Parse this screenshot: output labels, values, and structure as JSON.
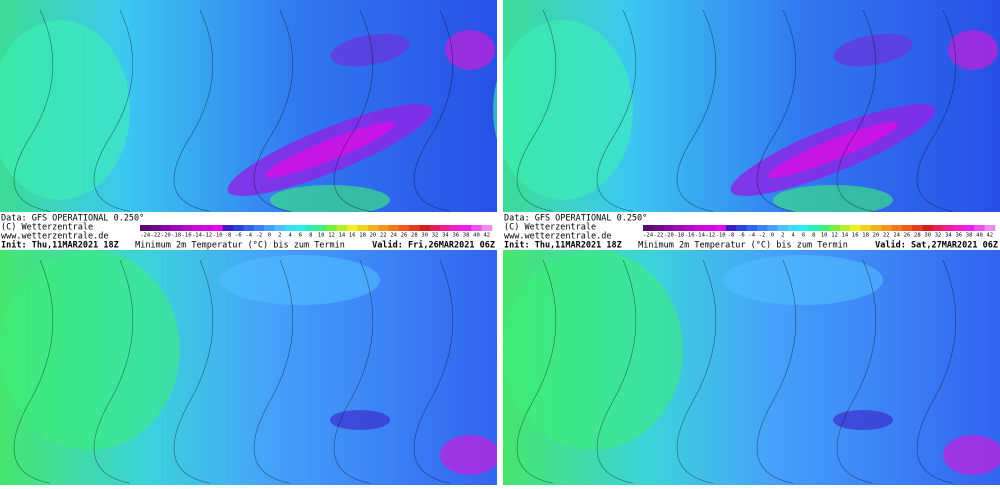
{
  "panels": [
    {
      "source": "Data: GFS OPERATIONAL 0.250°",
      "copyright": "(C) Wetterzentrale",
      "url": "www.wetterzentrale.de",
      "init": "Init: Thu,11MAR2021 18Z",
      "title": "Minimum 2m Temperatur (°C) bis zum Termin",
      "valid": "Valid: Fri,26MAR2021 06Z"
    },
    {
      "source": "Data: GFS OPERATIONAL 0.250°",
      "copyright": "(C) Wetterzentrale",
      "url": "www.wetterzentrale.de",
      "init": "Init: Thu,11MAR2021 18Z",
      "title": "Minimum 2m Temperatur (°C) bis zum Termin",
      "valid": "Valid: Sat,27MAR2021 06Z"
    }
  ],
  "colorbar": {
    "ticks": [
      -24,
      -22,
      -20,
      -18,
      -16,
      -14,
      -12,
      -10,
      -8,
      -6,
      -4,
      -2,
      0,
      2,
      4,
      6,
      8,
      10,
      12,
      14,
      16,
      18,
      20,
      22,
      24,
      26,
      28,
      30,
      32,
      34,
      36,
      38,
      40,
      42
    ],
    "colors": [
      "#5a0a6e",
      "#6e0a8a",
      "#8a0aa6",
      "#a00ab8",
      "#b40ac8",
      "#c80ad2",
      "#d20adc",
      "#e60ae6",
      "#3c1ec8",
      "#2846dc",
      "#3264f0",
      "#3c82f5",
      "#46a0fa",
      "#50beff",
      "#3cdcff",
      "#28f0f0",
      "#28f0b4",
      "#3cf078",
      "#78f03c",
      "#b4f028",
      "#f0f01e",
      "#f0d21e",
      "#f0b41e",
      "#f0961e",
      "#f0781e",
      "#f05a1e",
      "#e63c1e",
      "#d21e1e",
      "#e61e5a",
      "#f01e96",
      "#f01ec8",
      "#f01ef0",
      "#f050f0",
      "#f08cf0"
    ]
  }
}
